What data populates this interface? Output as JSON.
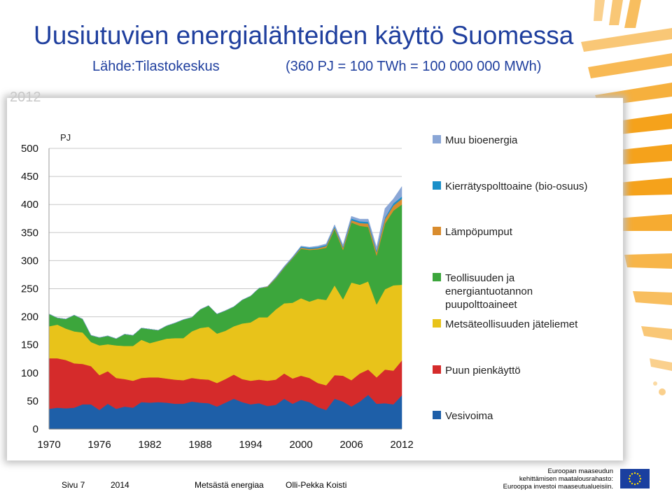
{
  "header": {
    "title": "Uusiutuvien energialähteiden käyttö Suomessa",
    "source": "Lähde:Tilastokeskus",
    "conversion": "(360 PJ = 100 TWh = 100 000 000 MWh)"
  },
  "chart_year_tag": "2012",
  "chart_data": {
    "type": "area",
    "stacked": true,
    "ylabel": "PJ",
    "ylim": [
      0,
      500
    ],
    "yticks": [
      0,
      50,
      100,
      150,
      200,
      250,
      300,
      350,
      400,
      450,
      500
    ],
    "xtick_labels": [
      "1970",
      "1976",
      "1982",
      "1988",
      "1994",
      "2000",
      "2006",
      "2012"
    ],
    "grid": true,
    "legend_position": "right",
    "x": [
      1970,
      1971,
      1972,
      1973,
      1974,
      1975,
      1976,
      1977,
      1978,
      1979,
      1980,
      1981,
      1982,
      1983,
      1984,
      1985,
      1986,
      1987,
      1988,
      1989,
      1990,
      1991,
      1992,
      1993,
      1994,
      1995,
      1996,
      1997,
      1998,
      1999,
      2000,
      2001,
      2002,
      2003,
      2004,
      2005,
      2006,
      2007,
      2008,
      2009,
      2010,
      2011,
      2012
    ],
    "series": [
      {
        "name": "Vesivoima",
        "color": "#1e5fa8",
        "values": [
          36,
          38,
          37,
          38,
          44,
          44,
          34,
          45,
          36,
          40,
          38,
          48,
          47,
          48,
          47,
          45,
          45,
          49,
          47,
          46,
          40,
          47,
          54,
          48,
          44,
          46,
          41,
          43,
          54,
          45,
          52,
          48,
          39,
          34,
          54,
          49,
          40,
          49,
          61,
          45,
          46,
          44,
          60
        ]
      },
      {
        "name": "Puun pienkäyttö",
        "color": "#d52b2b",
        "values": [
          90,
          88,
          86,
          79,
          72,
          68,
          62,
          58,
          55,
          49,
          48,
          43,
          45,
          44,
          43,
          43,
          42,
          42,
          42,
          42,
          42,
          42,
          43,
          41,
          42,
          42,
          45,
          45,
          45,
          45,
          43,
          43,
          43,
          44,
          42,
          46,
          47,
          50,
          45,
          47,
          60,
          60,
          62
        ]
      },
      {
        "name": "Metsäteollisuuden jäteliemet",
        "color": "#e8c31a",
        "values": [
          57,
          60,
          56,
          57,
          56,
          43,
          53,
          48,
          58,
          59,
          62,
          68,
          61,
          65,
          71,
          74,
          75,
          83,
          91,
          94,
          88,
          86,
          86,
          99,
          104,
          111,
          113,
          125,
          125,
          135,
          138,
          136,
          150,
          152,
          160,
          136,
          174,
          158,
          157,
          130,
          143,
          152,
          135
        ]
      },
      {
        "name": "Teollisuuden ja energiantuotannon puupolttoaineet",
        "color": "#3ca63c",
        "values": [
          22,
          12,
          17,
          29,
          24,
          12,
          14,
          15,
          12,
          21,
          19,
          21,
          25,
          19,
          23,
          27,
          33,
          25,
          33,
          38,
          35,
          36,
          35,
          42,
          47,
          52,
          54,
          55,
          63,
          79,
          88,
          92,
          88,
          93,
          100,
          88,
          107,
          105,
          97,
          87,
          117,
          133,
          143
        ]
      },
      {
        "name": "Lämpöpumput",
        "color": "#d98c2e",
        "values": [
          0,
          0,
          0,
          0,
          0,
          0,
          0,
          0,
          0,
          0,
          0,
          0,
          0,
          0,
          0,
          0,
          0,
          0,
          0,
          0,
          0,
          0,
          0,
          0,
          0,
          0,
          1,
          1,
          1,
          1,
          2,
          2,
          2,
          3,
          3,
          4,
          4,
          5,
          6,
          6,
          8,
          9,
          10
        ]
      },
      {
        "name": "Kierrätyspolttoaine (bio-osuus)",
        "color": "#1a8fc9",
        "values": [
          0,
          0,
          0,
          0,
          0,
          0,
          0,
          0,
          0,
          0,
          0,
          0,
          0,
          0,
          0,
          0,
          0,
          0,
          0,
          0,
          0,
          0,
          0,
          0,
          0,
          0,
          0,
          1,
          1,
          1,
          2,
          2,
          2,
          2,
          2,
          2,
          3,
          3,
          3,
          3,
          3,
          4,
          4
        ]
      },
      {
        "name": "Muu bioenergia",
        "color": "#8aa6d6",
        "values": [
          0,
          0,
          0,
          0,
          0,
          0,
          0,
          0,
          0,
          0,
          0,
          0,
          0,
          0,
          0,
          0,
          0,
          0,
          0,
          0,
          0,
          0,
          0,
          0,
          0,
          0,
          0,
          1,
          1,
          1,
          1,
          1,
          2,
          2,
          3,
          3,
          4,
          4,
          5,
          6,
          16,
          8,
          18
        ]
      }
    ],
    "legend_labels": [
      "Muu bioenergia",
      "Kierrätyspolttoaine (bio-osuus)",
      "Lämpöpumput",
      "Teollisuuden ja energiantuotannon puupolttoaineet",
      "Metsäteollisuuden jäteliemet",
      "Puun pienkäyttö",
      "Vesivoima"
    ]
  },
  "legend_lines": {
    "muu": [
      "Muu bioenergia"
    ],
    "kierr": [
      "Kierrätyspolttoaine (bio-osuus)"
    ],
    "lampo": [
      "Lämpöpumput"
    ],
    "teoll": [
      "Teollisuuden ja",
      "energiantuotannon",
      "puupolttoaineet"
    ],
    "jate": [
      "Metsäteollisuuden jäteliemet"
    ],
    "pien": [
      "Puun pienkäyttö"
    ],
    "vesi": [
      "Vesivoima"
    ]
  },
  "footer": {
    "page": "Sivu 7",
    "year": "2014",
    "topic": "Metsästä energiaa",
    "author": "Olli-Pekka Koisti"
  },
  "eu_text": {
    "line1": "Euroopan maaseudun",
    "line2": "kehittämisen maatalousrahasto:",
    "line3": "Eurooppa investoi maaseutualueisiin."
  },
  "colors": {
    "title": "#1f3f9e",
    "swoosh": "#f5a21b",
    "eu_flag": "#1a3f9f"
  }
}
